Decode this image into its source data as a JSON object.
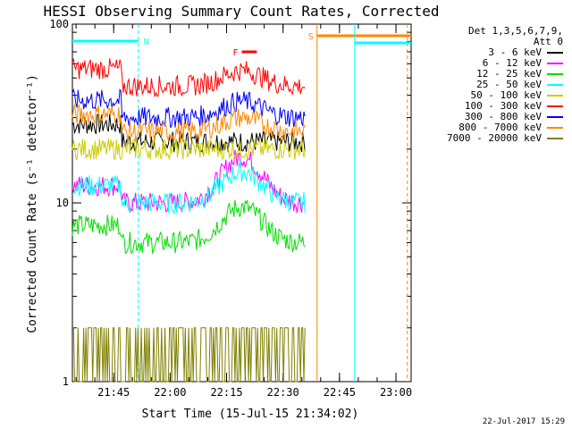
{
  "chart_data": {
    "type": "line",
    "title": "HESSI Observing Summary Count Rates, Corrected",
    "xlabel": "Start Time (15-Jul-15 21:34:02)",
    "ylabel": "Corrected Count Rate (s⁻¹ detector⁻¹)",
    "yscale": "log",
    "ylim": [
      1,
      100
    ],
    "xlim_minutes": [
      0,
      90
    ],
    "x_ticks": [
      {
        "label": "21:45",
        "minutes": 10.97
      },
      {
        "label": "22:00",
        "minutes": 25.97
      },
      {
        "label": "22:15",
        "minutes": 40.97
      },
      {
        "label": "22:30",
        "minutes": 55.97
      },
      {
        "label": "22:45",
        "minutes": 70.97
      },
      {
        "label": "23:00",
        "minutes": 85.97
      }
    ],
    "y_ticks": [
      {
        "label": "1",
        "value": 1
      },
      {
        "label": "10",
        "value": 10
      },
      {
        "label": "100",
        "value": 100
      }
    ],
    "legend_header": [
      "Det 1,3,5,6,7,9,",
      "Att 0"
    ],
    "legend_position": "top-right",
    "series": [
      {
        "name": "3 - 6 keV",
        "color": "#000000",
        "approx_level": 22,
        "end_minutes": 62
      },
      {
        "name": "6 - 12 keV",
        "color": "#ff00ff",
        "approx_level": 10,
        "peak": 18,
        "end_minutes": 62
      },
      {
        "name": "12 - 25 keV",
        "color": "#00dd00",
        "approx_level": 6,
        "peak": 9.5,
        "end_minutes": 62
      },
      {
        "name": "25 - 50 keV",
        "color": "#00ffff",
        "approx_level": 10,
        "peak": 15,
        "end_minutes": 62
      },
      {
        "name": "50 - 100 keV",
        "color": "#cccc00",
        "approx_level": 20,
        "end_minutes": 62
      },
      {
        "name": "100 - 300 keV",
        "color": "#ff0000",
        "approx_level": 45,
        "peak": 55,
        "end_minutes": 62
      },
      {
        "name": "300 - 800 keV",
        "color": "#0000ff",
        "approx_level": 30,
        "peak": 37,
        "end_minutes": 62
      },
      {
        "name": "800 - 7000 keV",
        "color": "#ff8800",
        "approx_level": 25,
        "peak": 30,
        "end_minutes": 62
      },
      {
        "name": "7000 - 20000 keV",
        "color": "#808000",
        "approx_level": 1.5,
        "end_minutes": 62
      }
    ],
    "annotations": [
      {
        "label": "N",
        "color": "#00ffff",
        "start_minutes": 0,
        "end_minutes": 17.5
      },
      {
        "label": "F",
        "color": "#ff0000",
        "start_minutes": 45,
        "end_minutes": 49
      },
      {
        "label": "S",
        "color": "#ff8800",
        "start_minutes": 65,
        "end_minutes": 90
      }
    ],
    "night_bar": {
      "start_minutes": 75,
      "end_minutes": 90
    }
  },
  "footer_date": "22-Jul-2017 15:29"
}
